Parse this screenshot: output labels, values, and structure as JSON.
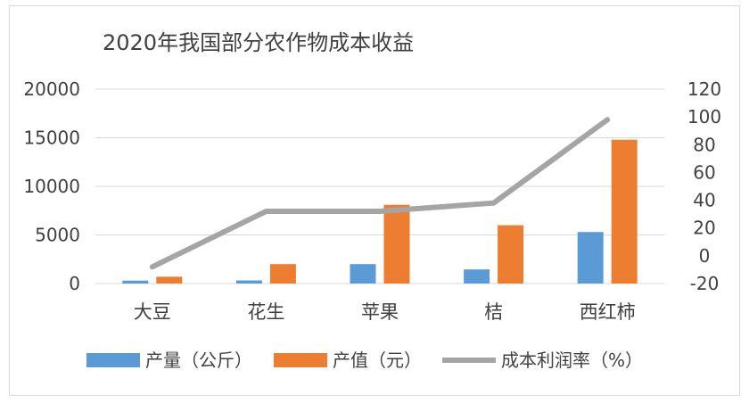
{
  "chart_data": {
    "type": "bar",
    "title": "2020年我国部分农作物成本收益",
    "categories": [
      "大豆",
      "花生",
      "苹果",
      "桔",
      "西红柿"
    ],
    "series": [
      {
        "name": "产量（公斤）",
        "kind": "bar",
        "axis": "left",
        "color": "#5b9bd5",
        "values": [
          300,
          320,
          2000,
          1450,
          5300
        ]
      },
      {
        "name": "产值（元）",
        "kind": "bar",
        "axis": "left",
        "color": "#ed7d31",
        "values": [
          700,
          2000,
          8100,
          6000,
          14800
        ]
      },
      {
        "name": "成本利润率（%）",
        "kind": "line",
        "axis": "right",
        "color": "#a5a5a5",
        "values": [
          -8,
          32,
          32,
          38,
          98
        ]
      }
    ],
    "y_left": {
      "min": 0,
      "max": 20000,
      "ticks": [
        "0",
        "5000",
        "10000",
        "15000",
        "20000"
      ]
    },
    "y_right": {
      "min": -20,
      "max": 120,
      "ticks": [
        "-20",
        "0",
        "20",
        "40",
        "60",
        "80",
        "100",
        "120"
      ]
    },
    "grid": true,
    "legend_position": "bottom"
  }
}
